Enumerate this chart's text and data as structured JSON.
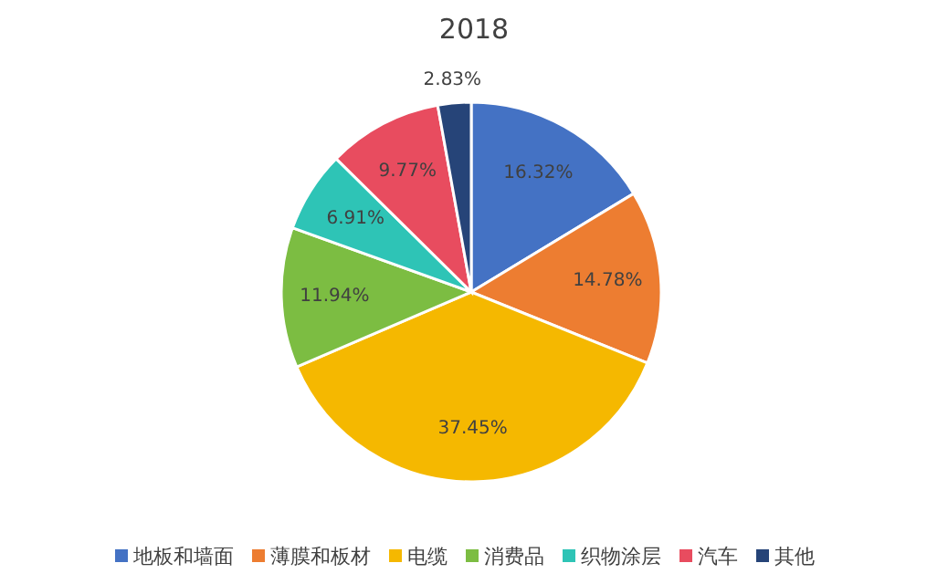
{
  "chart_data": {
    "type": "pie",
    "title": "2018",
    "categories": [
      "地板和墙面",
      "薄膜和板材",
      "电缆",
      "消费品",
      "织物涂层",
      "汽车",
      "其他"
    ],
    "values": [
      16.32,
      14.78,
      37.45,
      11.94,
      6.91,
      9.77,
      2.83
    ],
    "colors": [
      "#4472c4",
      "#ed7d31",
      "#f5b800",
      "#7cbd42",
      "#2ec4b6",
      "#e84c5f",
      "#264478"
    ],
    "value_labels": [
      "16.32%",
      "14.78%",
      "37.45%",
      "11.94%",
      "6.91%",
      "9.77%",
      "2.83%"
    ],
    "legend": "bottom"
  }
}
